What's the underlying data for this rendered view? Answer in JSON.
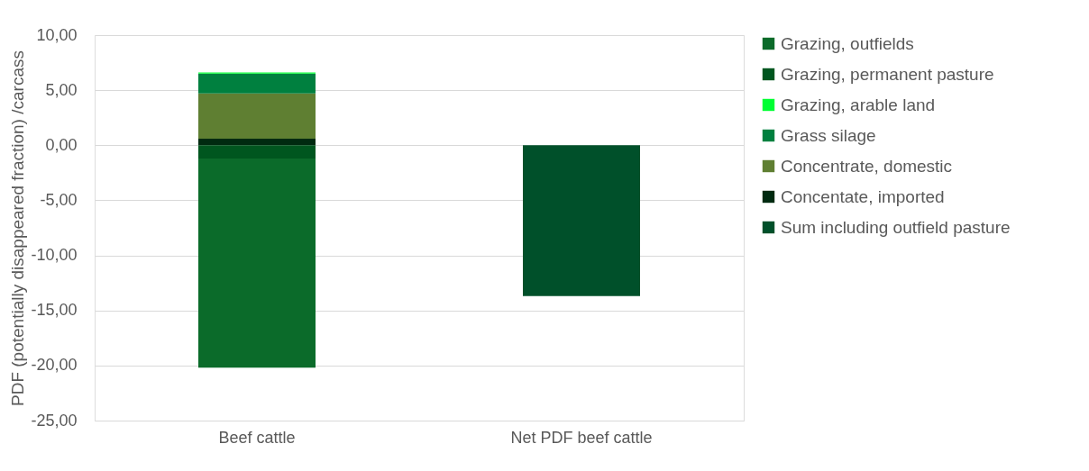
{
  "chart_data": {
    "type": "bar",
    "stacked": true,
    "ylabel": "PDF (potentially disappeared fraction) /carcass",
    "categories": [
      "Beef cattle",
      "Net PDF beef cattle"
    ],
    "series": [
      {
        "name": "Grazing, outfields",
        "color": "#0b6b2a",
        "values": [
          -19.0,
          null
        ]
      },
      {
        "name": "Grazing, permanent pasture",
        "color": "#00561f",
        "values": [
          -1.2,
          null
        ]
      },
      {
        "name": "Grazing, arable land",
        "color": "#00ff33",
        "values": [
          0.1,
          null
        ]
      },
      {
        "name": "Grass silage",
        "color": "#00803f",
        "values": [
          1.8,
          null
        ]
      },
      {
        "name": "Concentrate, domestic",
        "color": "#5f7f32",
        "values": [
          4.1,
          null
        ]
      },
      {
        "name": "Concentate, imported",
        "color": "#002a10",
        "values": [
          0.6,
          null
        ]
      },
      {
        "name": "Sum including outfield pasture",
        "color": "#00502a",
        "values": [
          null,
          -13.7
        ]
      }
    ],
    "ylim": [
      -25,
      10
    ],
    "yticks": [
      {
        "value": -25,
        "label": "-25,00"
      },
      {
        "value": -20,
        "label": "-20,00"
      },
      {
        "value": -15,
        "label": "-15,00"
      },
      {
        "value": -10,
        "label": "-10,00"
      },
      {
        "value": -5,
        "label": "-5,00"
      },
      {
        "value": 0,
        "label": "0,00"
      },
      {
        "value": 5,
        "label": "5,00"
      },
      {
        "value": 10,
        "label": "10,00"
      }
    ],
    "grid": "y",
    "legend": "right"
  }
}
